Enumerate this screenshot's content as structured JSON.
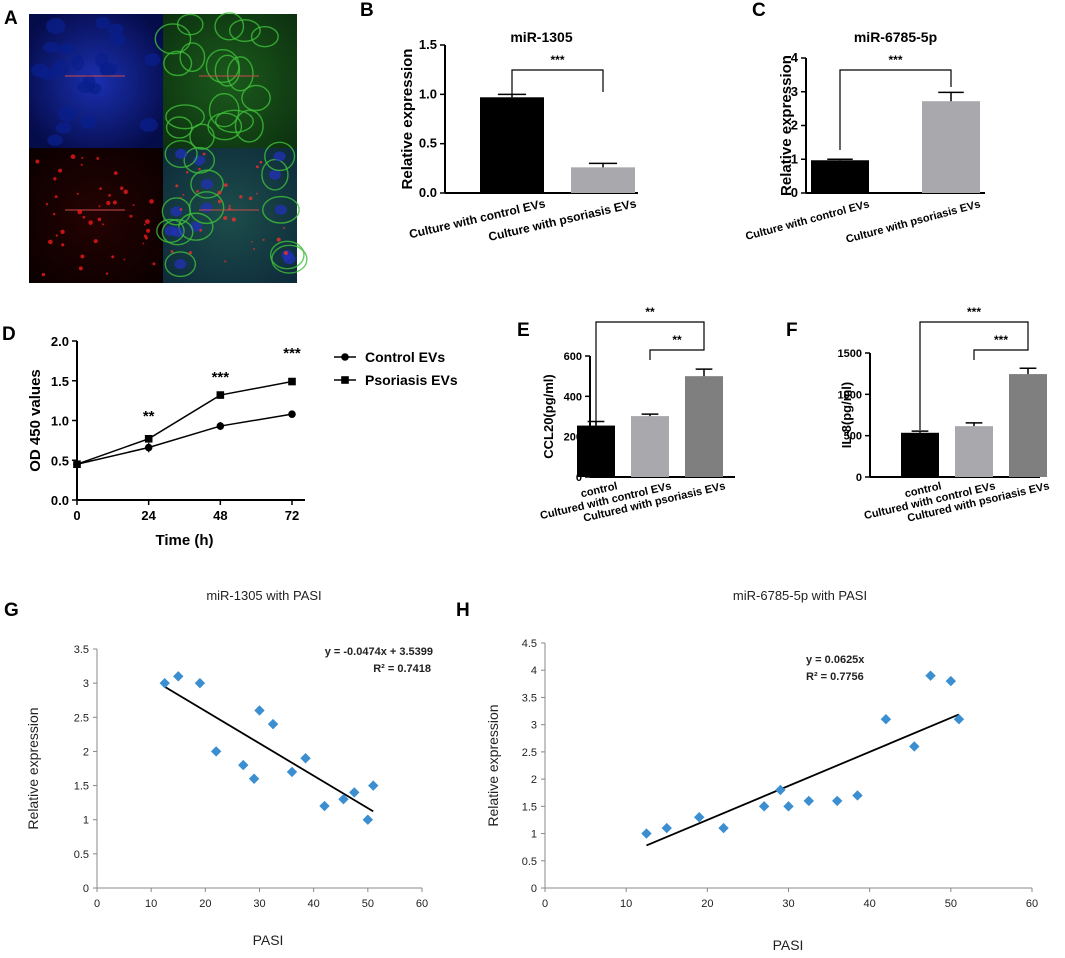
{
  "panel_labels": {
    "a": "A",
    "b": "B",
    "c": "C",
    "d": "D",
    "e": "E",
    "f": "F",
    "g": "G",
    "h": "H"
  },
  "colors": {
    "black": "#000000",
    "light_gray": "#a8a8ad",
    "mid_gray": "#7f7f7f",
    "diamond": "#3b8fd1",
    "micro_blue": "#0a1f8c",
    "micro_green": "#2f8a2c",
    "micro_red": "#b80c0c"
  },
  "chart_data": [
    {
      "id": "B",
      "type": "bar",
      "title": "miR-1305",
      "ylabel": "Relative expression",
      "ylim": [
        0,
        1.5
      ],
      "yticks": [
        0.0,
        0.5,
        1.0,
        1.5
      ],
      "categories": [
        "Culture with control EVs",
        "Culture with psoriasis EVs"
      ],
      "values": [
        0.97,
        0.26
      ],
      "errors": [
        0.03,
        0.04
      ],
      "bar_colors": [
        "#000000",
        "#a8a8ad"
      ],
      "significance": [
        {
          "from": 0,
          "to": 1,
          "label": "***"
        }
      ]
    },
    {
      "id": "C",
      "type": "bar",
      "title": "miR-6785-5p",
      "ylabel": "Relative expression",
      "ylim": [
        0,
        4
      ],
      "yticks": [
        0,
        1,
        2,
        3,
        4
      ],
      "categories": [
        "Culture with control EVs",
        "Culture with psoriasis EVs"
      ],
      "values": [
        0.97,
        2.72
      ],
      "errors": [
        0.03,
        0.26
      ],
      "bar_colors": [
        "#000000",
        "#a8a8ad"
      ],
      "significance": [
        {
          "from": 0,
          "to": 1,
          "label": "***"
        }
      ]
    },
    {
      "id": "D",
      "type": "line",
      "title": "",
      "xlabel": "Time (h)",
      "ylabel": "OD 450 values",
      "x": [
        0,
        24,
        48,
        72
      ],
      "xlim": [
        0,
        72
      ],
      "xticks": [
        0,
        24,
        48,
        72
      ],
      "ylim": [
        0,
        2.0
      ],
      "yticks": [
        0.0,
        0.5,
        1.0,
        1.5,
        2.0
      ],
      "series": [
        {
          "name": "Control EVs",
          "marker": "circle",
          "values": [
            0.45,
            0.66,
            0.93,
            1.08
          ],
          "errors": [
            0.02,
            0.06,
            0.05,
            0.02
          ]
        },
        {
          "name": "Psoriasis EVs",
          "marker": "square",
          "values": [
            0.45,
            0.77,
            1.32,
            1.49
          ],
          "errors": [
            0.02,
            0.04,
            0.03,
            0.02
          ]
        }
      ],
      "significance": [
        {
          "x": 24,
          "label": "**"
        },
        {
          "x": 48,
          "label": "***"
        },
        {
          "x": 72,
          "label": "***"
        }
      ],
      "legend": "right"
    },
    {
      "id": "E",
      "type": "bar",
      "title": "",
      "ylabel": "CCL20(pg/ml)",
      "ylim": [
        0,
        600
      ],
      "yticks": [
        0,
        200,
        400,
        600
      ],
      "categories": [
        "control",
        "Cultured with control EVs",
        "Cultured with psoriasis EVs"
      ],
      "values": [
        255,
        302,
        500
      ],
      "errors": [
        20,
        10,
        35
      ],
      "bar_colors": [
        "#000000",
        "#a8a8ad",
        "#7f7f7f"
      ],
      "significance": [
        {
          "from": 1,
          "to": 2,
          "label": "**"
        },
        {
          "from": 0,
          "to": 2,
          "label": "**"
        }
      ]
    },
    {
      "id": "F",
      "type": "bar",
      "title": "",
      "ylabel": "IL-8(pg/ml)",
      "ylim": [
        0,
        1500
      ],
      "yticks": [
        0,
        500,
        1000,
        1500
      ],
      "categories": [
        "control",
        "Cultured with control EVs",
        "Cultured with psoriasis EVs"
      ],
      "values": [
        535,
        615,
        1245
      ],
      "errors": [
        20,
        40,
        70
      ],
      "bar_colors": [
        "#000000",
        "#a8a8ad",
        "#7f7f7f"
      ],
      "significance": [
        {
          "from": 1,
          "to": 2,
          "label": "***"
        },
        {
          "from": 0,
          "to": 2,
          "label": "***"
        }
      ]
    },
    {
      "id": "G",
      "type": "scatter",
      "title": "miR-1305 with PASI",
      "xlabel": "PASI",
      "ylabel": "Relative expression",
      "xlim": [
        0,
        60
      ],
      "xticks": [
        0,
        10,
        20,
        30,
        40,
        50,
        60
      ],
      "ylim": [
        0,
        3.5
      ],
      "yticks": [
        0,
        0.5,
        1,
        1.5,
        2,
        2.5,
        3,
        3.5
      ],
      "points": [
        [
          12.5,
          3.0
        ],
        [
          15,
          3.1
        ],
        [
          19,
          3.0
        ],
        [
          22,
          2.0
        ],
        [
          27,
          1.8
        ],
        [
          29,
          1.6
        ],
        [
          30,
          2.6
        ],
        [
          32.5,
          2.4
        ],
        [
          36,
          1.7
        ],
        [
          38.5,
          1.9
        ],
        [
          42,
          1.2
        ],
        [
          45.5,
          1.3
        ],
        [
          47.5,
          1.4
        ],
        [
          50,
          1.0
        ],
        [
          51,
          1.5
        ]
      ],
      "trendline": {
        "slope": -0.0474,
        "intercept": 3.5399,
        "x_range": [
          12.5,
          51
        ]
      },
      "equation": "y = -0.0474x + 3.5399",
      "r_squared": "R² = 0.7418"
    },
    {
      "id": "H",
      "type": "scatter",
      "title": "miR-6785-5p with PASI",
      "xlabel": "PASI",
      "ylabel": "Relative expression",
      "xlim": [
        0,
        60
      ],
      "xticks": [
        0,
        10,
        20,
        30,
        40,
        50,
        60
      ],
      "ylim": [
        0,
        4.5
      ],
      "yticks": [
        0,
        0.5,
        1,
        1.5,
        2,
        2.5,
        3,
        3.5,
        4,
        4.5
      ],
      "points": [
        [
          12.5,
          1.0
        ],
        [
          15,
          1.1
        ],
        [
          19,
          1.3
        ],
        [
          22,
          1.1
        ],
        [
          27,
          1.5
        ],
        [
          29,
          1.8
        ],
        [
          30,
          1.5
        ],
        [
          32.5,
          1.6
        ],
        [
          36,
          1.6
        ],
        [
          38.5,
          1.7
        ],
        [
          42,
          3.1
        ],
        [
          45.5,
          2.6
        ],
        [
          47.5,
          3.9
        ],
        [
          50,
          3.8
        ],
        [
          51,
          3.1
        ]
      ],
      "trendline": {
        "slope": 0.0625,
        "intercept": 0,
        "x_range": [
          12.5,
          51
        ]
      },
      "equation": "y = 0.0625x",
      "r_squared": "R² = 0.7756"
    }
  ]
}
